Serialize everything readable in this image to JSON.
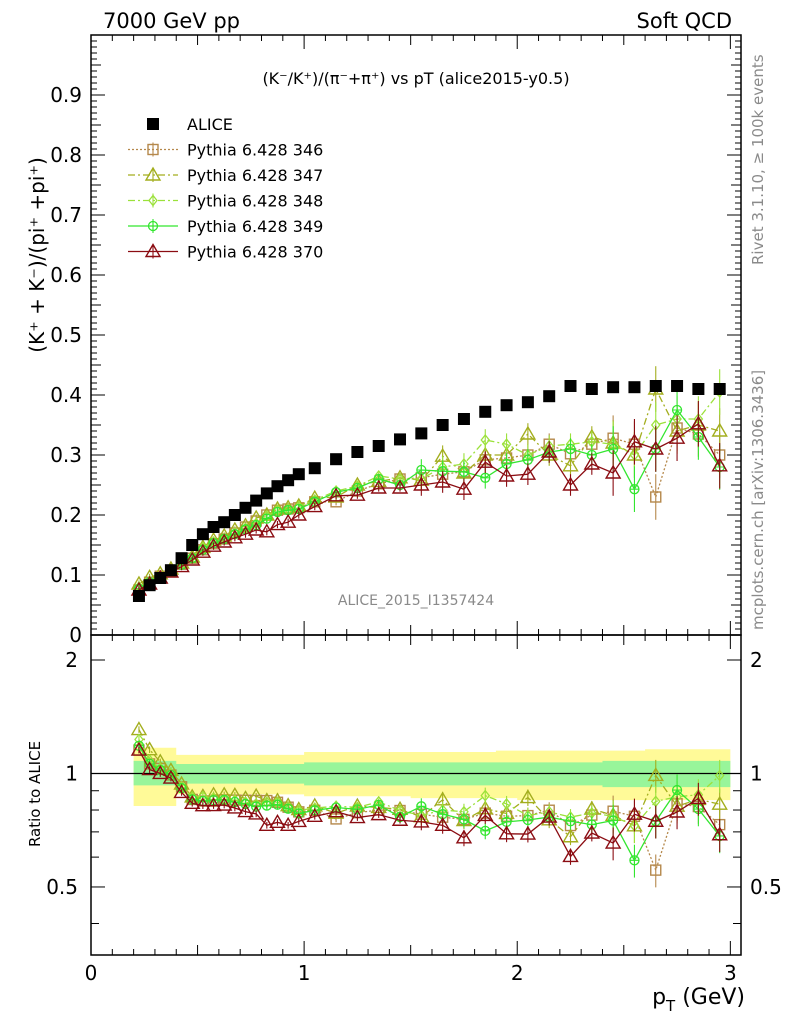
{
  "header": {
    "left": "7000 GeV pp",
    "right": "Soft QCD"
  },
  "side": {
    "top": "Rivet 3.1.10, ≥ 100k events",
    "bottom": "mcplots.cern.ch [arXiv:1306.3436]"
  },
  "colors": {
    "alice": "#000000",
    "p346": "#b5884b",
    "p347": "#a3ae1e",
    "p348": "#9be13a",
    "p349": "#33e62f",
    "p370": "#8b0c12",
    "band_outer": "#fffa98",
    "band_inner": "#98f59a"
  },
  "chart_data": [
    {
      "type": "scatter",
      "title": "(K⁻/K⁺)/(π⁻+π⁺) vs pT (alice2015-y0.5)",
      "ylabel": "(K⁺ + K⁻)/(pi⁺ +pi⁺)",
      "xlabel": "p_T (GeV)",
      "watermark": "ALICE_2015_I1357424",
      "xlim": [
        0,
        3.05
      ],
      "ylim": [
        0,
        1.0
      ],
      "xticks": [
        "0",
        "1",
        "2",
        "3"
      ],
      "yticks": [
        "0.1",
        "0.2",
        "0.3",
        "0.4",
        "0.5",
        "0.6",
        "0.7",
        "0.8",
        "0.9"
      ],
      "x": [
        0.225,
        0.275,
        0.325,
        0.375,
        0.425,
        0.475,
        0.525,
        0.575,
        0.625,
        0.675,
        0.725,
        0.775,
        0.825,
        0.875,
        0.925,
        0.975,
        1.05,
        1.15,
        1.25,
        1.35,
        1.45,
        1.55,
        1.65,
        1.75,
        1.85,
        1.95,
        2.05,
        2.15,
        2.25,
        2.35,
        2.45,
        2.55,
        2.65,
        2.75,
        2.85,
        2.95
      ],
      "series": [
        {
          "name": "ALICE",
          "marker": "square-filled",
          "values": [
            0.065,
            0.083,
            0.095,
            0.108,
            0.128,
            0.15,
            0.168,
            0.18,
            0.188,
            0.2,
            0.212,
            0.224,
            0.236,
            0.248,
            0.258,
            0.268,
            0.278,
            0.293,
            0.305,
            0.315,
            0.326,
            0.336,
            0.35,
            0.36,
            0.372,
            0.383,
            0.388,
            0.398,
            0.415,
            0.41,
            0.413,
            0.413,
            0.415,
            0.415,
            0.41,
            0.41
          ]
        },
        {
          "name": "Pythia 6.428 346",
          "marker": "square-open",
          "dash": "2,2",
          "values": [
            0.075,
            0.088,
            0.098,
            0.107,
            0.118,
            0.128,
            0.142,
            0.152,
            0.16,
            0.17,
            0.18,
            0.19,
            0.2,
            0.208,
            0.21,
            0.212,
            0.222,
            0.222,
            0.24,
            0.252,
            0.26,
            0.262,
            0.268,
            0.272,
            0.292,
            0.295,
            0.3,
            0.318,
            0.302,
            0.318,
            0.328,
            0.318,
            0.23,
            0.345,
            0.335,
            0.3
          ]
        },
        {
          "name": "Pythia 6.428 347",
          "marker": "triangle-open",
          "dash": "7,3,2,3",
          "values": [
            0.085,
            0.096,
            0.102,
            0.11,
            0.12,
            0.13,
            0.146,
            0.158,
            0.165,
            0.175,
            0.182,
            0.195,
            0.2,
            0.21,
            0.212,
            0.215,
            0.228,
            0.23,
            0.25,
            0.256,
            0.262,
            0.258,
            0.298,
            0.27,
            0.3,
            0.3,
            0.335,
            0.3,
            0.282,
            0.33,
            0.32,
            0.3,
            0.41,
            0.34,
            0.35,
            0.34
          ]
        },
        {
          "name": "Pythia 6.428 348",
          "marker": "diamond-open",
          "dash": "7,3,2,3",
          "values": [
            0.08,
            0.09,
            0.098,
            0.108,
            0.118,
            0.13,
            0.146,
            0.155,
            0.16,
            0.17,
            0.178,
            0.186,
            0.198,
            0.208,
            0.21,
            0.214,
            0.225,
            0.24,
            0.248,
            0.265,
            0.26,
            0.26,
            0.28,
            0.285,
            0.325,
            0.318,
            0.3,
            0.315,
            0.318,
            0.322,
            0.318,
            0.3,
            0.35,
            0.36,
            0.36,
            0.405
          ]
        },
        {
          "name": "Pythia 6.428 349",
          "marker": "circle-cross",
          "dash": "",
          "values": [
            0.077,
            0.088,
            0.097,
            0.107,
            0.117,
            0.128,
            0.142,
            0.153,
            0.16,
            0.168,
            0.176,
            0.183,
            0.194,
            0.205,
            0.208,
            0.21,
            0.222,
            0.238,
            0.245,
            0.26,
            0.25,
            0.275,
            0.273,
            0.272,
            0.262,
            0.285,
            0.292,
            0.305,
            0.31,
            0.3,
            0.31,
            0.243,
            0.31,
            0.375,
            0.33,
            0.28
          ]
        },
        {
          "name": "Pythia 6.428 370",
          "marker": "triangle-open",
          "dash": "",
          "values": [
            0.075,
            0.085,
            0.095,
            0.105,
            0.114,
            0.125,
            0.138,
            0.148,
            0.155,
            0.162,
            0.168,
            0.175,
            0.172,
            0.184,
            0.188,
            0.2,
            0.214,
            0.232,
            0.233,
            0.245,
            0.245,
            0.25,
            0.255,
            0.243,
            0.288,
            0.265,
            0.268,
            0.305,
            0.25,
            0.285,
            0.27,
            0.322,
            0.31,
            0.328,
            0.352,
            0.282
          ]
        }
      ],
      "legend": "top-left"
    },
    {
      "type": "scatter",
      "ylabel": "Ratio to ALICE",
      "ylim": [
        0.33,
        2.33
      ],
      "scale": "log",
      "yticks": [
        "0.5",
        "1",
        "2"
      ],
      "band_outer_upper": [
        1.17,
        1.12,
        1.12,
        1.14,
        1.14,
        1.14,
        1.15,
        1.15,
        1.15,
        1.16,
        1.17
      ],
      "band_outer_lower": [
        0.82,
        0.88,
        0.88,
        0.87,
        0.87,
        0.86,
        0.86,
        0.85,
        0.85,
        0.85,
        0.85
      ],
      "band_inner_upper": [
        1.08,
        1.06,
        1.06,
        1.07,
        1.07,
        1.07,
        1.07,
        1.07,
        1.08,
        1.08,
        1.08
      ],
      "band_inner_lower": [
        0.93,
        0.94,
        0.94,
        0.93,
        0.93,
        0.93,
        0.93,
        0.93,
        0.92,
        0.92,
        0.92
      ],
      "band_x": [
        0.2,
        0.4,
        0.6,
        1.0,
        1.4,
        1.5,
        1.9,
        2.0,
        2.4,
        2.6,
        3.0
      ],
      "series_note": "ratio = pythia / ALICE for each series above"
    }
  ]
}
